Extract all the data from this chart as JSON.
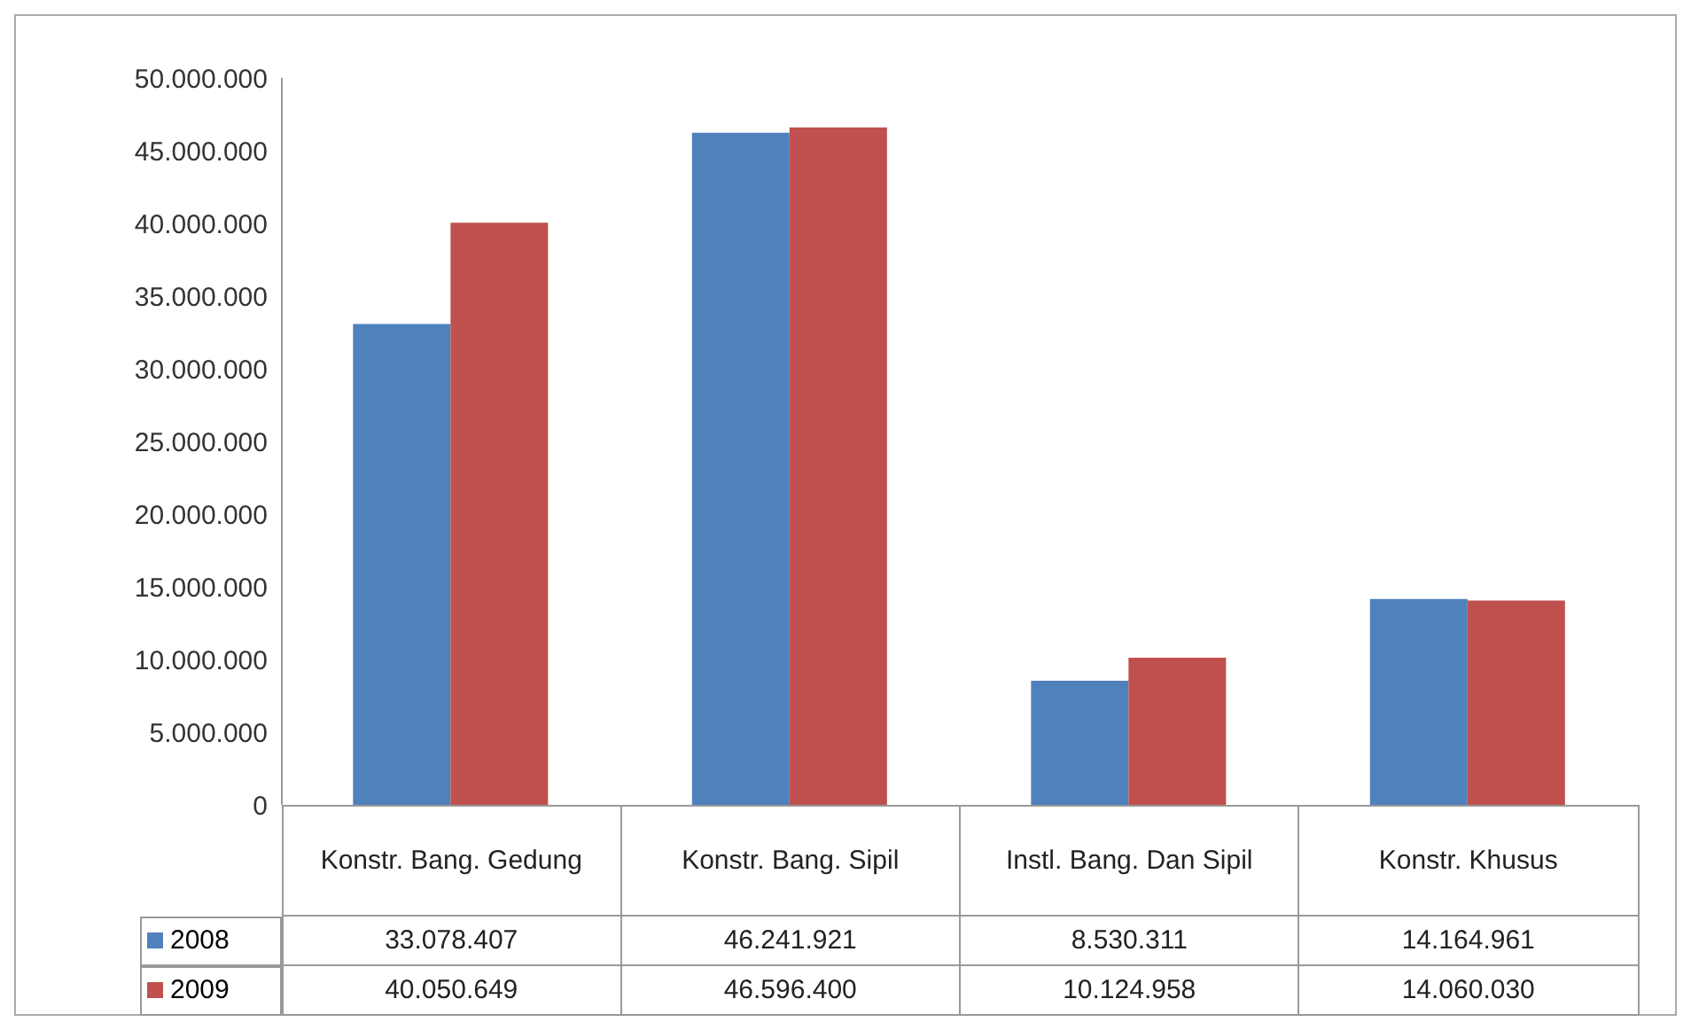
{
  "chart_data": {
    "type": "bar",
    "categories": [
      "Konstr. Bang. Gedung",
      "Konstr. Bang. Sipil",
      "Instl. Bang. Dan Sipil",
      "Konstr. Khusus"
    ],
    "series": [
      {
        "name": "2008",
        "color": "#4f81bd",
        "values": [
          33078407,
          46241921,
          8530311,
          14164961
        ],
        "value_labels": [
          "33.078.407",
          "46.241.921",
          "8.530.311",
          "14.164.961"
        ]
      },
      {
        "name": "2009",
        "color": "#c0504d",
        "values": [
          40050649,
          46596400,
          10124958,
          14060030
        ],
        "value_labels": [
          "40.050.649",
          "46.596.400",
          "10.124.958",
          "14.060.030"
        ]
      }
    ],
    "ylim": [
      0,
      50000000
    ],
    "yticks": [
      0,
      {
        "value": 5000000,
        "label": "5.000.000"
      },
      {
        "value": 10000000,
        "label": "10.000.000"
      },
      {
        "value": 15000000,
        "label": "15.000.000"
      },
      {
        "value": 20000000,
        "label": "20.000.000"
      },
      {
        "value": 25000000,
        "label": "25.000.000"
      },
      {
        "value": 30000000,
        "label": "30.000.000"
      },
      {
        "value": 35000000,
        "label": "35.000.000"
      },
      {
        "value": 40000000,
        "label": "40.000.000"
      },
      {
        "value": 45000000,
        "label": "45.000.000"
      },
      {
        "value": 50000000,
        "label": "50.000.000"
      }
    ],
    "legend": "bottom left"
  }
}
